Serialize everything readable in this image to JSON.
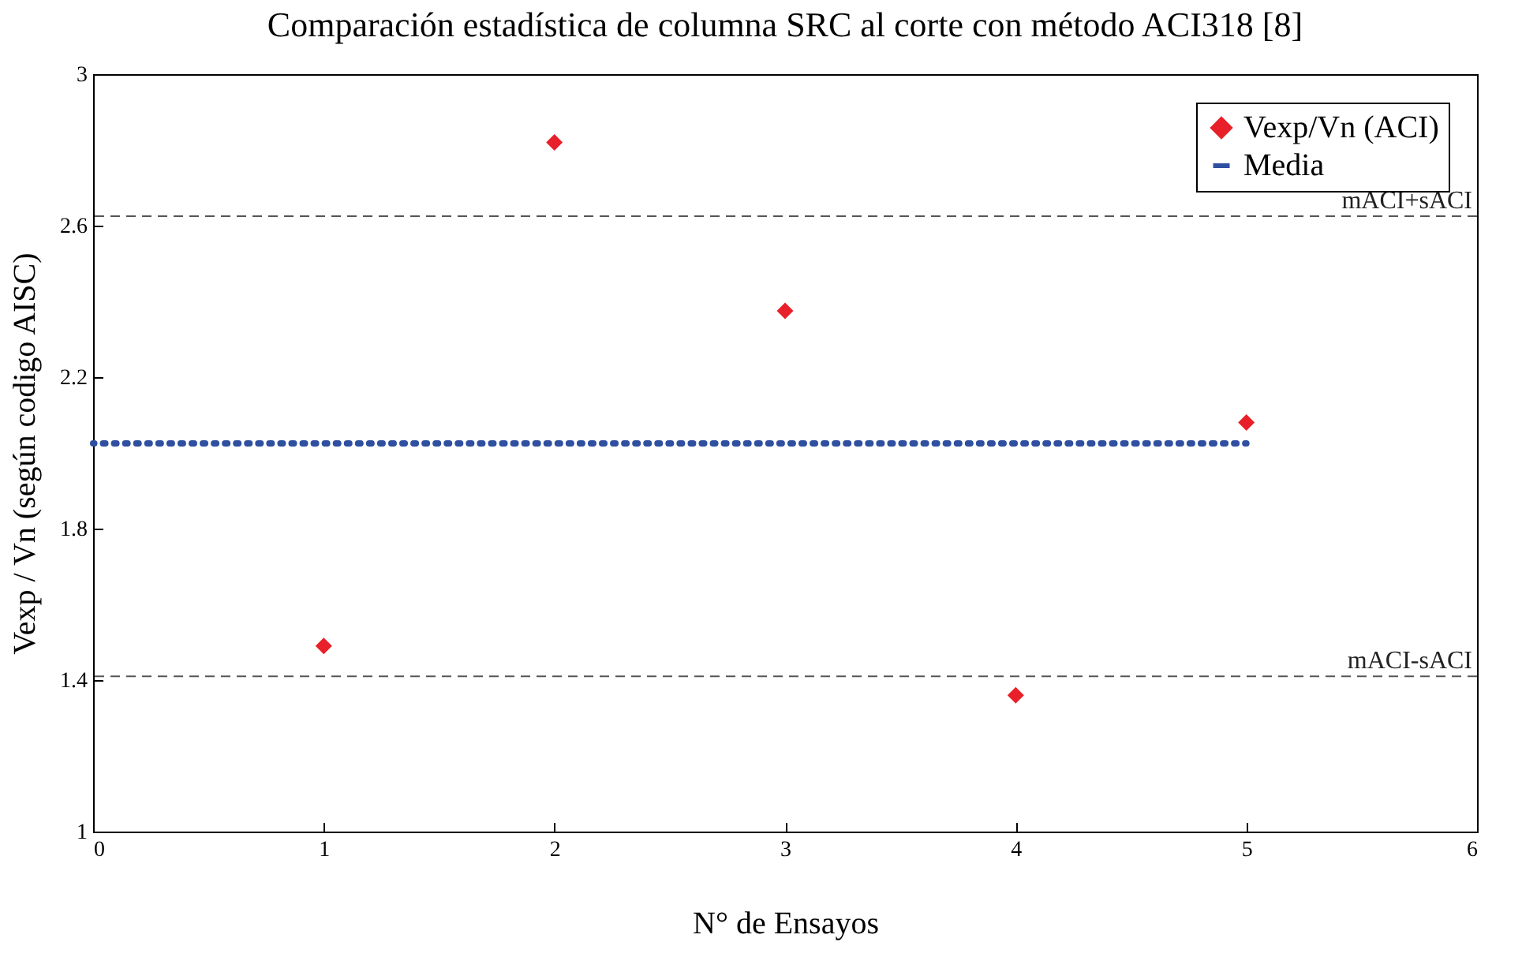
{
  "chart_data": {
    "type": "scatter",
    "title": "Comparación estadística de columna SRC al corte con método ACI318 [8]",
    "xlabel": "N° de Ensayos",
    "ylabel": "Vexp / Vn (según codigo AISC)",
    "x": [
      1,
      2,
      3,
      4,
      5
    ],
    "series": [
      {
        "name": "Vexp/Vn (ACI)",
        "color": "#e8202a",
        "values": [
          1.49,
          2.82,
          2.375,
          1.36,
          2.08
        ],
        "marker": "diamond"
      },
      {
        "name": "Media",
        "type": "line",
        "color": "#2f4fa0",
        "x": [
          0,
          5
        ],
        "values": [
          2.025,
          2.025
        ],
        "line_style": "dotted",
        "marker": "none"
      }
    ],
    "ref_lines": [
      {
        "axis": "y",
        "value": 2.625,
        "label": "mACI+sACI",
        "color": "#555555",
        "line_style": "dashed"
      },
      {
        "axis": "y",
        "value": 1.41,
        "label": "mACI-sACI",
        "color": "#555555",
        "line_style": "dashed"
      }
    ],
    "xlim": [
      0,
      6
    ],
    "xticks": [
      0,
      1,
      2,
      3,
      4,
      5,
      6
    ],
    "ylim": [
      1,
      3
    ],
    "yticks": [
      1,
      1.4,
      1.8,
      2.2,
      2.6,
      3
    ],
    "grid": false,
    "legend": "top right"
  }
}
